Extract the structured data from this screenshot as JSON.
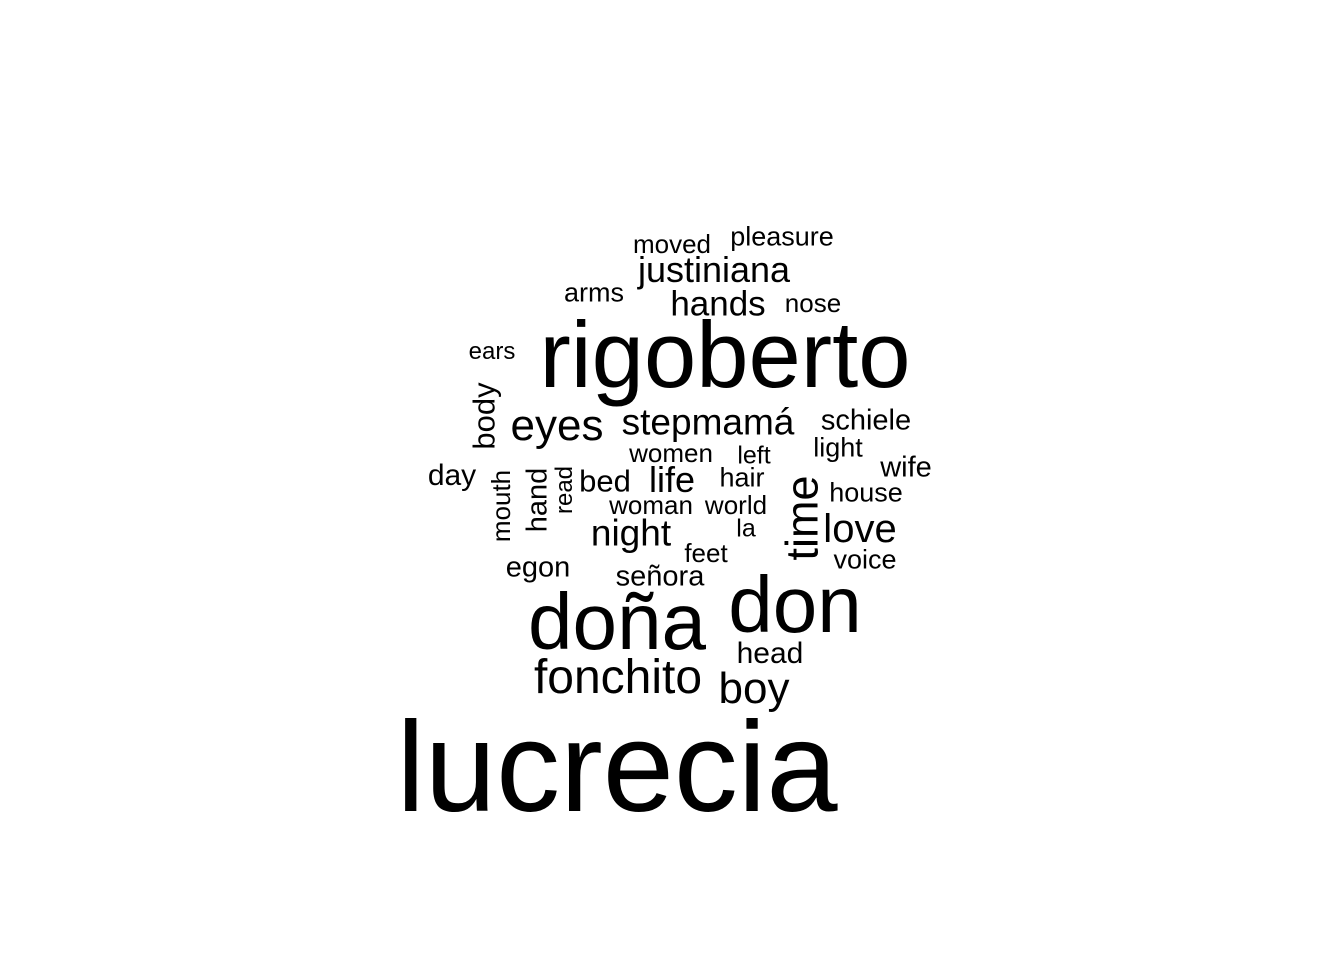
{
  "word_cloud": {
    "words": {
      "lucrecia": "lucrecia",
      "rigoberto": "rigoberto",
      "dona": "doña",
      "don": "don",
      "fonchito": "fonchito",
      "boy": "boy",
      "eyes": "eyes",
      "stepmama": "stepmamá",
      "time": "time",
      "love": "love",
      "night": "night",
      "justiniana": "justiniana",
      "hands": "hands",
      "life": "life",
      "bed": "bed",
      "body": "body",
      "hand": "hand",
      "schiele": "schiele",
      "senora": "señora",
      "egon": "egon",
      "head": "head",
      "day": "day",
      "wife": "wife",
      "feet": "feet",
      "hair": "hair",
      "light": "light",
      "house": "house",
      "voice": "voice",
      "world": "world",
      "woman": "woman",
      "women": "women",
      "mouth": "mouth",
      "arms": "arms",
      "pleasure": "pleasure",
      "moved": "moved",
      "nose": "nose",
      "ears": "ears",
      "left": "left",
      "la": "la",
      "read": "read"
    },
    "vertical_words": [
      "time",
      "body",
      "hand",
      "mouth",
      "read"
    ],
    "text_color": "#000000",
    "background_color": "#ffffff"
  }
}
